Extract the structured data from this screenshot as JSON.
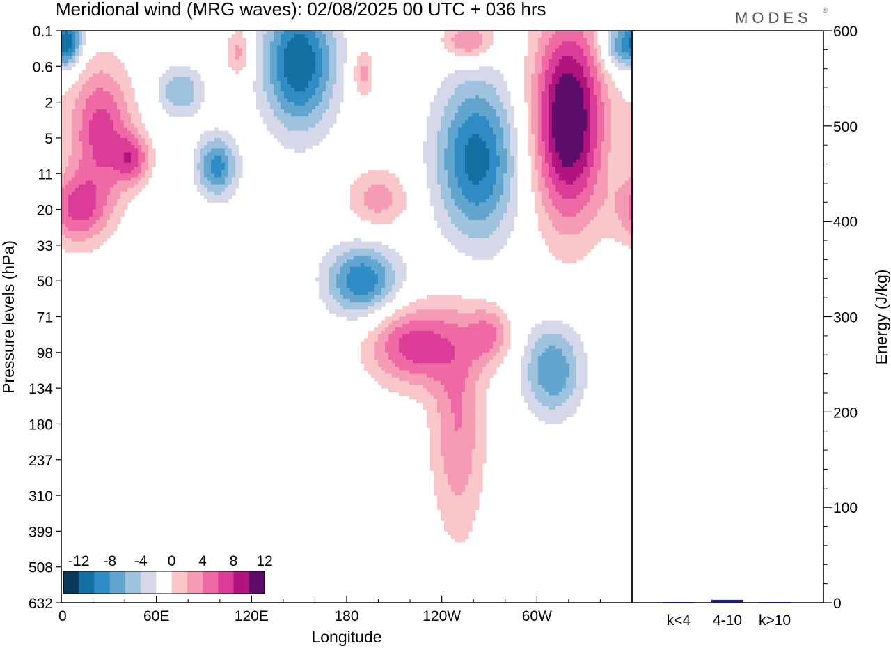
{
  "chart_data": [
    {
      "type": "heatmap",
      "title": "Meridional wind (MRG waves):  02/08/2025  00 UTC  + 036 hrs",
      "xlabel": "Longitude",
      "ylabel": "Pressure levels (hPa)",
      "x_ticks": [
        "0",
        "60E",
        "120E",
        "180",
        "120W",
        "60W"
      ],
      "x_tick_values": [
        0,
        60,
        120,
        180,
        240,
        300
      ],
      "xlim": [
        0,
        360
      ],
      "y_ticks": [
        "0.1",
        "0.6",
        "2",
        "5",
        "11",
        "20",
        "33",
        "50",
        "71",
        "98",
        "134",
        "180",
        "237",
        "310",
        "399",
        "508",
        "632"
      ],
      "colorbar": {
        "labels": [
          "-12",
          "-8",
          "-4",
          "0",
          "4",
          "8",
          "12"
        ],
        "levels": [
          -14,
          -12,
          -10,
          -8,
          -6,
          -4,
          -2,
          2,
          4,
          6,
          8,
          10,
          12,
          14
        ],
        "colors": [
          "#0b3a5a",
          "#1470a3",
          "#2f8cc4",
          "#62a6cf",
          "#9fc3de",
          "#d4d8e8",
          "#ffffff",
          "#f9c7c9",
          "#f69bb4",
          "#ef6aa5",
          "#db3c98",
          "#b0157f",
          "#5e0d6b"
        ]
      },
      "blobs": [
        {
          "lon": 5,
          "lev": 0.3,
          "w": 6,
          "h": 0.5,
          "v": -10
        },
        {
          "lon": 25,
          "lev": 2.8,
          "w": 14,
          "h": 1.3,
          "v": 9
        },
        {
          "lon": 45,
          "lev": 3.6,
          "w": 8,
          "h": 0.5,
          "v": 7
        },
        {
          "lon": 10,
          "lev": 5.0,
          "w": 14,
          "h": 0.7,
          "v": 8
        },
        {
          "lon": 75,
          "lev": 1.7,
          "w": 10,
          "h": 0.5,
          "v": -6
        },
        {
          "lon": 98,
          "lev": 3.8,
          "w": 9,
          "h": 0.6,
          "v": -9
        },
        {
          "lon": 112,
          "lev": 0.6,
          "w": 6,
          "h": 0.5,
          "v": 5
        },
        {
          "lon": 150,
          "lev": 0.9,
          "w": 16,
          "h": 1.3,
          "v": -12
        },
        {
          "lon": 190,
          "lev": 1.2,
          "w": 5,
          "h": 0.5,
          "v": 5
        },
        {
          "lon": 190,
          "lev": 7.0,
          "w": 16,
          "h": 0.7,
          "v": -10
        },
        {
          "lon": 222,
          "lev": 8.8,
          "w": 20,
          "h": 0.8,
          "v": 9
        },
        {
          "lon": 200,
          "lev": 4.7,
          "w": 14,
          "h": 0.6,
          "v": 5
        },
        {
          "lon": 262,
          "lev": 3.6,
          "w": 18,
          "h": 1.6,
          "v": -11
        },
        {
          "lon": 270,
          "lev": 8.5,
          "w": 10,
          "h": 0.6,
          "v": 6
        },
        {
          "lon": 257,
          "lev": 0.3,
          "w": 12,
          "h": 0.4,
          "v": 7
        },
        {
          "lon": 320,
          "lev": 2.5,
          "w": 16,
          "h": 2.0,
          "v": 15
        },
        {
          "lon": 310,
          "lev": 9.5,
          "w": 13,
          "h": 0.9,
          "v": -8
        },
        {
          "lon": 352,
          "lev": 0.4,
          "w": 8,
          "h": 0.5,
          "v": -8
        },
        {
          "lon": 250,
          "lev": 11.0,
          "w": 12,
          "h": 2.2,
          "v": 6
        },
        {
          "lon": 105,
          "lev": 19.0,
          "w": 14,
          "h": 2.8,
          "v": 3
        },
        {
          "lon": 90,
          "lev": 22.0,
          "w": 10,
          "h": 1.4,
          "v": 4
        },
        {
          "lon": 120,
          "lev": 24.5,
          "w": 10,
          "h": 1.4,
          "v": -4
        },
        {
          "lon": 5,
          "lev": 25.0,
          "w": 8,
          "h": 2.0,
          "v": -5
        },
        {
          "lon": 30,
          "lev": 24.0,
          "w": 10,
          "h": 1.6,
          "v": 5
        },
        {
          "lon": 85,
          "lev": 36.5,
          "w": 8,
          "h": 3.5,
          "v": 8
        },
        {
          "lon": 55,
          "lev": 30.0,
          "w": 14,
          "h": 3.2,
          "v": -6
        },
        {
          "lon": 30,
          "lev": 32.0,
          "w": 10,
          "h": 3.0,
          "v": 9
        },
        {
          "lon": 55,
          "lev": 37.0,
          "w": 8,
          "h": 3.0,
          "v": -7
        },
        {
          "lon": 148,
          "lev": 26.0,
          "w": 7,
          "h": 3.0,
          "v": 8
        },
        {
          "lon": 166,
          "lev": 31.5,
          "w": 8,
          "h": 6.0,
          "v": -13
        },
        {
          "lon": 192,
          "lev": 30.0,
          "w": 13,
          "h": 6.0,
          "v": 9
        },
        {
          "lon": 210,
          "lev": 24.5,
          "w": 8,
          "h": 2.0,
          "v": -8
        },
        {
          "lon": 247,
          "lev": 22.0,
          "w": 12,
          "h": 1.8,
          "v": 6
        },
        {
          "lon": 247,
          "lev": 29.5,
          "w": 6,
          "h": 3.0,
          "v": 6
        },
        {
          "lon": 283,
          "lev": 33.5,
          "w": 10,
          "h": 5.0,
          "v": 12
        },
        {
          "lon": 301,
          "lev": 32.5,
          "w": 8,
          "h": 6.0,
          "v": -14
        },
        {
          "lon": 323,
          "lev": 32.0,
          "w": 12,
          "h": 5.5,
          "v": 13
        },
        {
          "lon": 345,
          "lev": 24.5,
          "w": 10,
          "h": 2.0,
          "v": -5
        },
        {
          "lon": 330,
          "lev": 28.0,
          "w": 12,
          "h": 2.0,
          "v": 4
        },
        {
          "lon": 290,
          "lev": 24.5,
          "w": 7,
          "h": 1.5,
          "v": 7
        },
        {
          "lon": 265,
          "lev": 19.0,
          "w": 10,
          "h": 1.8,
          "v": 5
        },
        {
          "lon": 200,
          "lev": 38.0,
          "w": 10,
          "h": 4.0,
          "v": -4
        },
        {
          "lon": 80,
          "lev": 39.0,
          "w": 6,
          "h": 1.5,
          "v": 5
        }
      ]
    },
    {
      "type": "bar",
      "ylabel": "Energy (J/kg)",
      "categories": [
        "k<4",
        "4-10",
        "k>10"
      ],
      "values": [
        0.5,
        3,
        0.5
      ],
      "ylim": [
        0,
        600
      ],
      "y_ticks": [
        "0",
        "100",
        "200",
        "300",
        "400",
        "500",
        "600"
      ],
      "bar_color": "#1a1a8c"
    }
  ],
  "branding": "MODES",
  "branding_mark": "®"
}
